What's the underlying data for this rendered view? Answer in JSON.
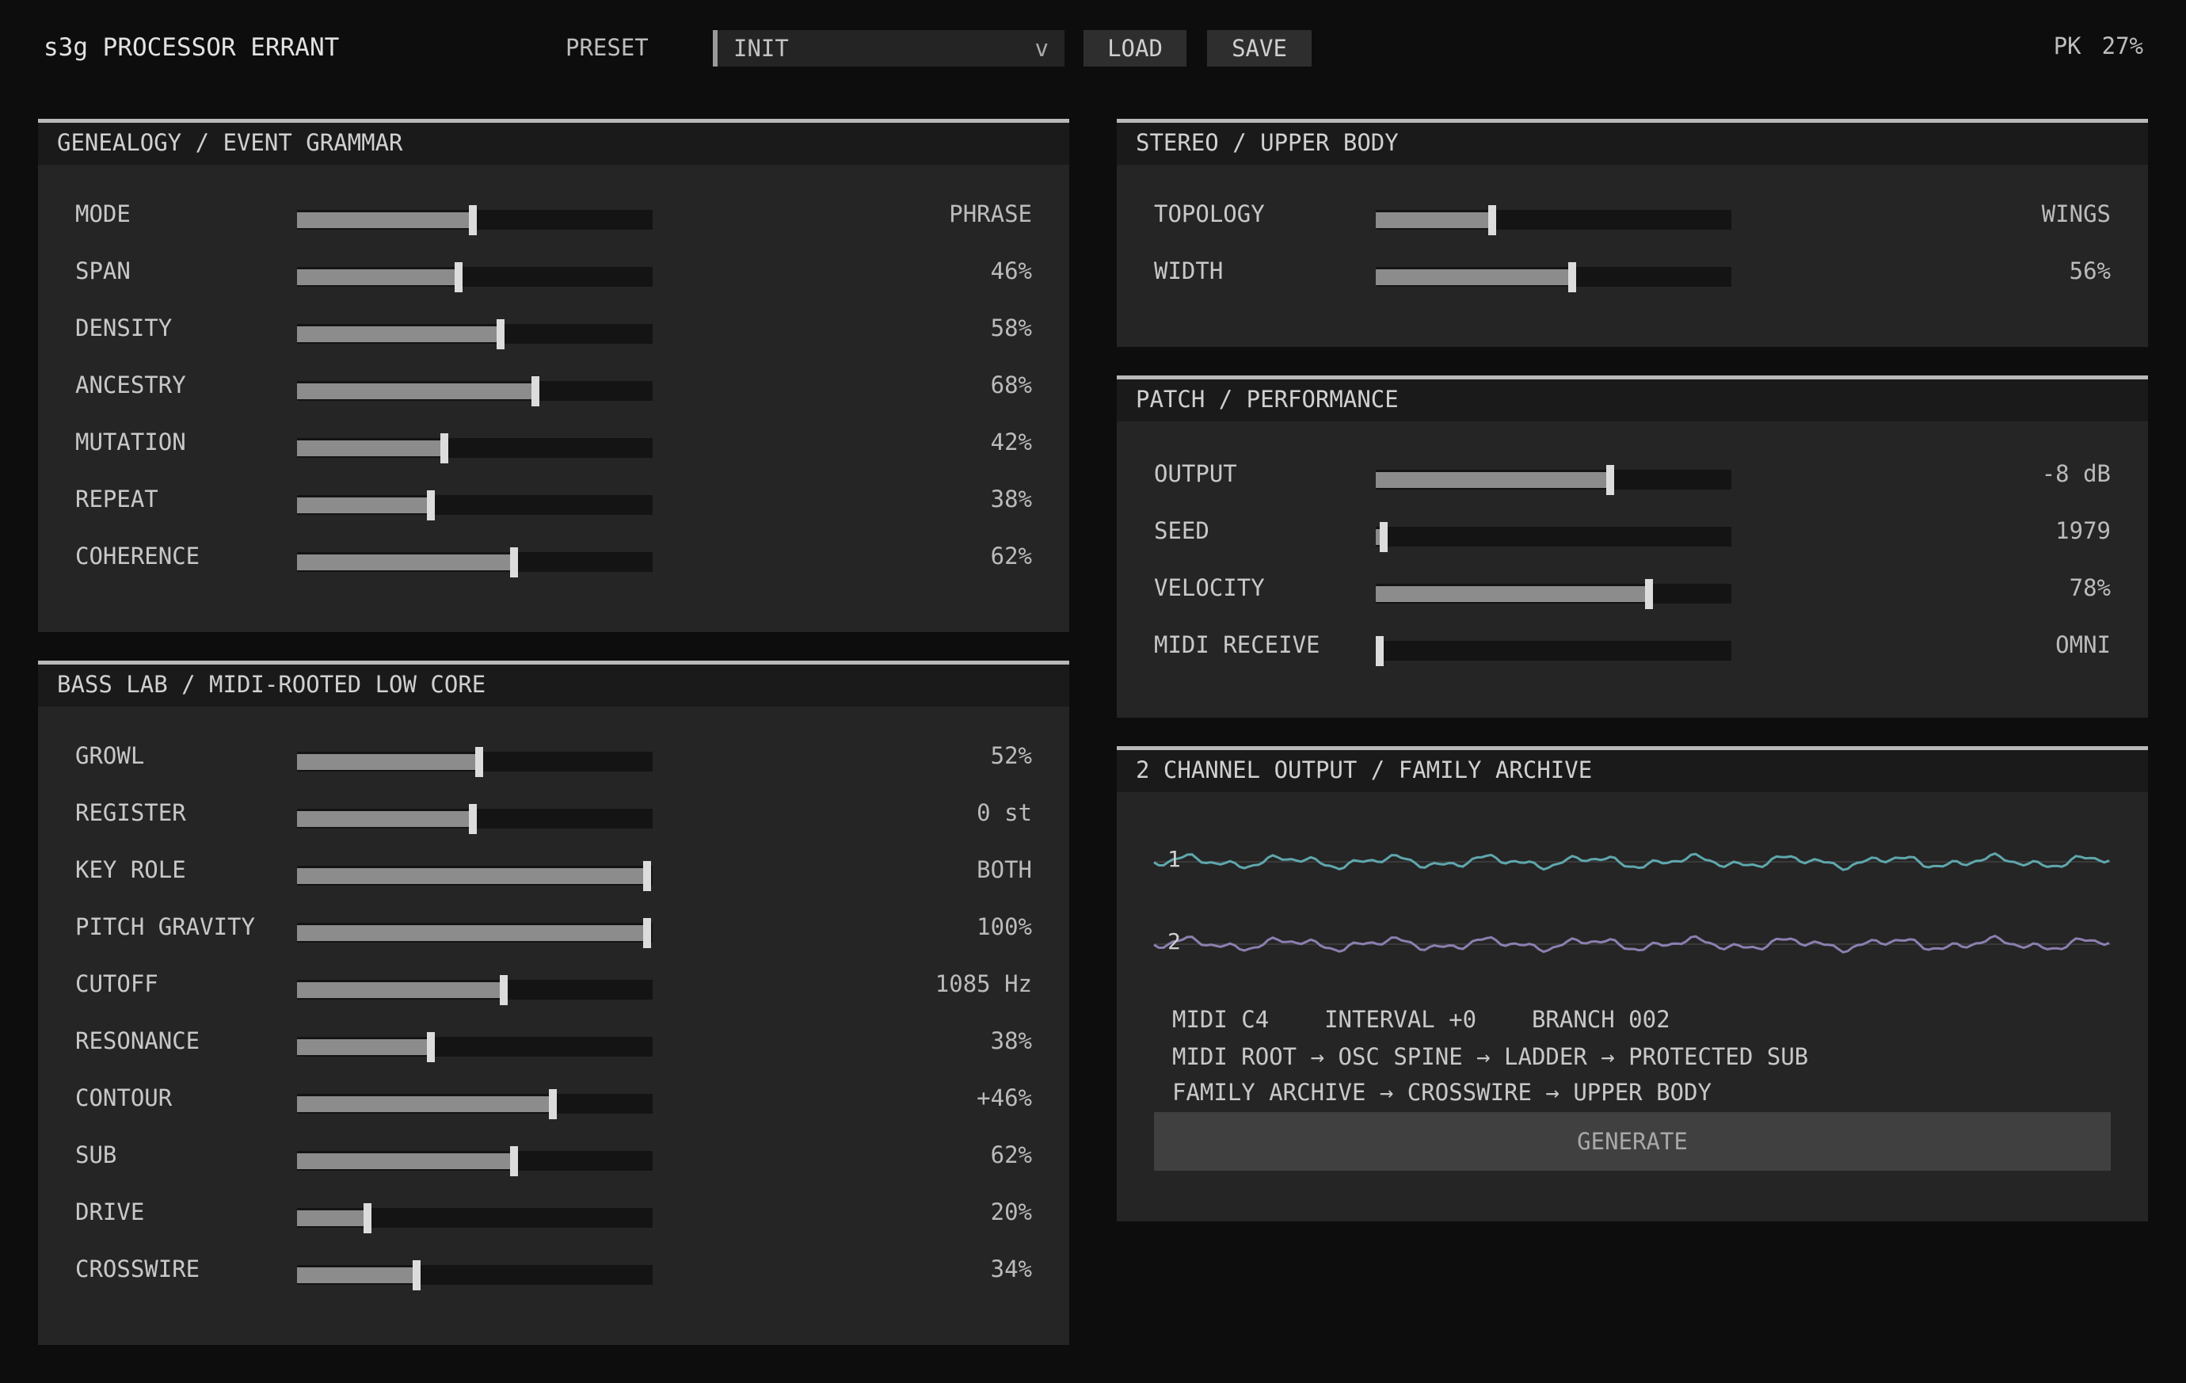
{
  "app": {
    "title": "s3g PROCESSOR ERRANT"
  },
  "toolbar": {
    "preset_label": "PRESET",
    "preset_value": "INIT",
    "preset_chevron": "v",
    "load_label": "LOAD",
    "save_label": "SAVE",
    "peak_label": "PK",
    "peak_value": "27%"
  },
  "genealogy": {
    "title": "GENEALOGY / EVENT GRAMMAR",
    "params": [
      {
        "label": "MODE",
        "value": "PHRASE",
        "level": 0.5
      },
      {
        "label": "SPAN",
        "value": "46%",
        "level": 0.46
      },
      {
        "label": "DENSITY",
        "value": "58%",
        "level": 0.58
      },
      {
        "label": "ANCESTRY",
        "value": "68%",
        "level": 0.68
      },
      {
        "label": "MUTATION",
        "value": "42%",
        "level": 0.42
      },
      {
        "label": "REPEAT",
        "value": "38%",
        "level": 0.38
      },
      {
        "label": "COHERENCE",
        "value": "62%",
        "level": 0.62
      }
    ]
  },
  "bass_lab": {
    "title": "BASS LAB / MIDI-ROOTED LOW CORE",
    "params": [
      {
        "label": "GROWL",
        "value": "52%",
        "level": 0.52
      },
      {
        "label": "REGISTER",
        "value": "0 st",
        "level": 0.5
      },
      {
        "label": "KEY ROLE",
        "value": "BOTH",
        "level": 1.0
      },
      {
        "label": "PITCH GRAVITY",
        "value": "100%",
        "level": 1.0
      },
      {
        "label": "CUTOFF",
        "value": "1085 Hz",
        "level": 0.59
      },
      {
        "label": "RESONANCE",
        "value": "38%",
        "level": 0.38
      },
      {
        "label": "CONTOUR",
        "value": "+46%",
        "level": 0.73
      },
      {
        "label": "SUB",
        "value": "62%",
        "level": 0.62
      },
      {
        "label": "DRIVE",
        "value": "20%",
        "level": 0.2
      },
      {
        "label": "CROSSWIRE",
        "value": "34%",
        "level": 0.34
      }
    ]
  },
  "stereo": {
    "title": "STEREO / UPPER BODY",
    "params": [
      {
        "label": "TOPOLOGY",
        "value": "WINGS",
        "level": 0.33
      },
      {
        "label": "WIDTH",
        "value": "56%",
        "level": 0.56
      }
    ]
  },
  "patch": {
    "title": "PATCH / PERFORMANCE",
    "params": [
      {
        "label": "OUTPUT",
        "value": "-8 dB",
        "level": 0.67
      },
      {
        "label": "SEED",
        "value": "1979",
        "level": 0.02
      },
      {
        "label": "VELOCITY",
        "value": "78%",
        "level": 0.78
      },
      {
        "label": "MIDI RECEIVE",
        "value": "OMNI",
        "level": 0.0
      }
    ]
  },
  "output": {
    "title": "2 CHANNEL OUTPUT / FAMILY ARCHIVE",
    "channels": [
      {
        "label": "1",
        "color": "#5fa7ad"
      },
      {
        "label": "2",
        "color": "#8c7fb0"
      }
    ],
    "info": {
      "midi_note": "MIDI C4",
      "interval": "INTERVAL +0",
      "branch": "BRANCH 002",
      "route_1": "MIDI ROOT → OSC SPINE → LADDER → PROTECTED SUB",
      "route_2": "FAMILY ARCHIVE → CROSSWIRE → UPPER BODY"
    },
    "generate_label": "GENERATE"
  },
  "colors": {
    "background": "#0d0d0d",
    "panel": "#252525",
    "slider_fill": "#8c8c8c",
    "slider_thumb": "#dcdcdc"
  }
}
